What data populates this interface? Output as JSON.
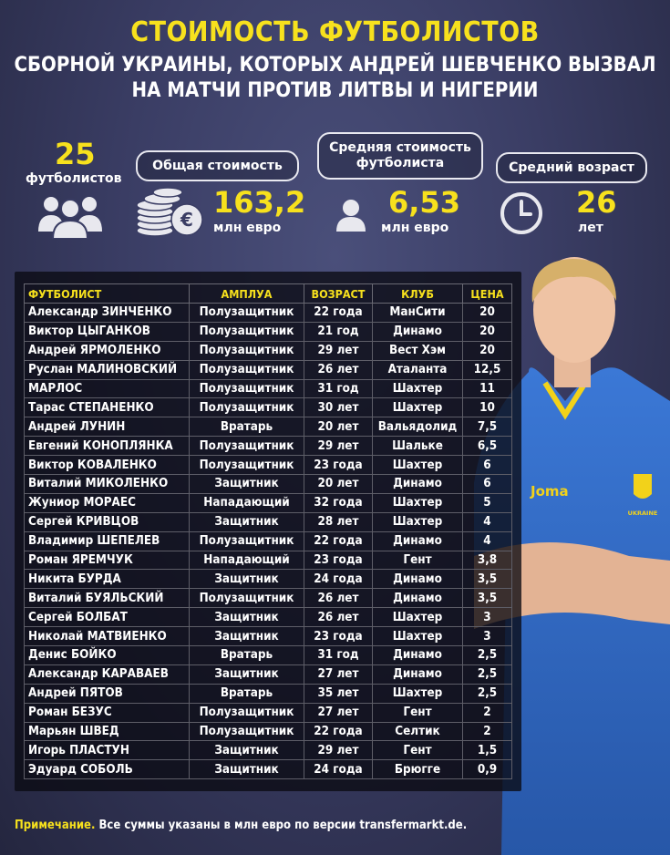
{
  "title": "СТОИМОСТЬ ФУТБОЛИСТОВ",
  "subtitle_line1": "СБОРНОЙ УКРАИНЫ, КОТОРЫХ АНДРЕЙ ШЕВЧЕНКО ВЫЗВАЛ",
  "subtitle_line2": "НА МАТЧИ ПРОТИВ ЛИТВЫ И НИГЕРИИ",
  "stats": {
    "players_count": "25",
    "players_label": "футболистов",
    "total_label": "Общая стоимость",
    "total_value": "163,2",
    "total_unit": "млн евро",
    "avg_label_line1": "Средняя стоимость",
    "avg_label_line2": "футболиста",
    "avg_value": "6,53",
    "avg_unit": "млн евро",
    "age_label": "Средний возраст",
    "age_value": "26",
    "age_unit": "лет"
  },
  "icons": {
    "group": "people-group-icon",
    "coins": "coins-euro-icon",
    "person": "person-icon",
    "clock": "clock-icon"
  },
  "colors": {
    "accent": "#f7e11d",
    "background": "#3a3d64",
    "panel": "#0a0a12"
  },
  "table": {
    "headers": [
      "ФУТБОЛИСТ",
      "АМПЛУА",
      "ВОЗРАСТ",
      "КЛУБ",
      "ЦЕНА"
    ],
    "rows": [
      [
        "Александр ЗИНЧЕНКО",
        "Полузащитник",
        "22 года",
        "МанСити",
        "20"
      ],
      [
        "Виктор ЦЫГАНКОВ",
        "Полузащитник",
        "21 год",
        "Динамо",
        "20"
      ],
      [
        "Андрей ЯРМОЛЕНКО",
        "Полузащитник",
        "29 лет",
        "Вест Хэм",
        "20"
      ],
      [
        "Руслан МАЛИНОВСКИЙ",
        "Полузащитник",
        "26 лет",
        "Аталанта",
        "12,5"
      ],
      [
        "МАРЛОС",
        "Полузащитник",
        "31 год",
        "Шахтер",
        "11"
      ],
      [
        "Тарас СТЕПАНЕНКО",
        "Полузащитник",
        "30 лет",
        "Шахтер",
        "10"
      ],
      [
        "Андрей ЛУНИН",
        "Вратарь",
        "20 лет",
        "Вальядолид",
        "7,5"
      ],
      [
        "Евгений КОНОПЛЯНКА",
        "Полузащитник",
        "29 лет",
        "Шальке",
        "6,5"
      ],
      [
        "Виктор КОВАЛЕНКО",
        "Полузащитник",
        "23 года",
        "Шахтер",
        "6"
      ],
      [
        "Виталий МИКОЛЕНКО",
        "Защитник",
        "20 лет",
        "Динамо",
        "6"
      ],
      [
        "Жуниор МОРАЕС",
        "Нападающий",
        "32 года",
        "Шахтер",
        "5"
      ],
      [
        "Сергей КРИВЦОВ",
        "Защитник",
        "28 лет",
        "Шахтер",
        "4"
      ],
      [
        "Владимир ШЕПЕЛЕВ",
        "Полузащитник",
        "22 года",
        "Динамо",
        "4"
      ],
      [
        "Роман ЯРЕМЧУК",
        "Нападающий",
        "23 года",
        "Гент",
        "3,8"
      ],
      [
        "Никита БУРДА",
        "Защитник",
        "24 года",
        "Динамо",
        "3,5"
      ],
      [
        "Виталий БУЯЛЬСКИЙ",
        "Полузащитник",
        "26 лет",
        "Динамо",
        "3,5"
      ],
      [
        "Сергей БОЛБАТ",
        "Защитник",
        "26 лет",
        "Шахтер",
        "3"
      ],
      [
        "Николай МАТВИЕНКО",
        "Защитник",
        "23 года",
        "Шахтер",
        "3"
      ],
      [
        "Денис БОЙКО",
        "Вратарь",
        "31 год",
        "Динамо",
        "2,5"
      ],
      [
        "Александр КАРАВАЕВ",
        "Защитник",
        "27 лет",
        "Динамо",
        "2,5"
      ],
      [
        "Андрей ПЯТОВ",
        "Вратарь",
        "35 лет",
        "Шахтер",
        "2,5"
      ],
      [
        "Роман БЕЗУС",
        "Полузащитник",
        "27 лет",
        "Гент",
        "2"
      ],
      [
        "Марьян ШВЕД",
        "Полузащитник",
        "22 года",
        "Селтик",
        "2"
      ],
      [
        "Игорь ПЛАСТУН",
        "Защитник",
        "29 лет",
        "Гент",
        "1,5"
      ],
      [
        "Эдуард СОБОЛЬ",
        "Защитник",
        "24 года",
        "Брюгге",
        "0,9"
      ]
    ]
  },
  "player_image": {
    "jersey_brand": "Joma",
    "crest_text": "UKRAINE"
  },
  "note": {
    "label": "Примечание.",
    "text": "Все суммы указаны в млн евро по версии transfermarkt.de."
  }
}
